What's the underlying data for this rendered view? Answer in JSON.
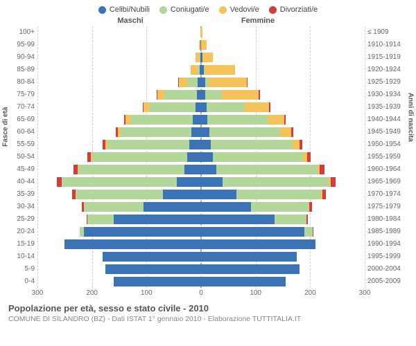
{
  "legend": [
    {
      "label": "Celibi/Nubili",
      "color": "#3b73b5"
    },
    {
      "label": "Coniugati/e",
      "color": "#b3d69b"
    },
    {
      "label": "Vedovi/e",
      "color": "#f6c35a"
    },
    {
      "label": "Divorziati/e",
      "color": "#d73c3c"
    }
  ],
  "headers": {
    "male": "Maschi",
    "female": "Femmine"
  },
  "y_left_title": "Fasce di età",
  "y_right_title": "Anni di nascita",
  "x_axis": {
    "min": -300,
    "max": 300,
    "ticks": [
      300,
      200,
      100,
      0,
      100,
      200,
      300
    ]
  },
  "title": "Popolazione per età, sesso e stato civile - 2010",
  "subtitle": "COMUNE DI SILANDRO (BZ) - Dati ISTAT 1° gennaio 2010 - Elaborazione TUTTITALIA.IT",
  "age_labels": [
    "100+",
    "95-99",
    "90-94",
    "85-89",
    "80-84",
    "75-79",
    "70-74",
    "65-69",
    "60-64",
    "55-59",
    "50-54",
    "45-49",
    "40-44",
    "35-39",
    "30-34",
    "25-29",
    "20-24",
    "15-19",
    "10-14",
    "5-9",
    "0-4"
  ],
  "birth_labels": [
    "≤ 1909",
    "1910-1914",
    "1915-1919",
    "1920-1924",
    "1925-1929",
    "1930-1934",
    "1935-1939",
    "1940-1944",
    "1945-1949",
    "1950-1954",
    "1955-1959",
    "1960-1964",
    "1965-1969",
    "1970-1974",
    "1975-1979",
    "1980-1984",
    "1985-1989",
    "1990-1994",
    "1995-1999",
    "2000-2004",
    "2005-2009"
  ],
  "rows": [
    {
      "m": [
        0,
        0,
        1,
        0
      ],
      "f": [
        0,
        0,
        3,
        0
      ]
    },
    {
      "m": [
        1,
        0,
        3,
        0
      ],
      "f": [
        0,
        0,
        10,
        0
      ]
    },
    {
      "m": [
        1,
        1,
        8,
        0
      ],
      "f": [
        2,
        0,
        20,
        0
      ]
    },
    {
      "m": [
        3,
        4,
        12,
        0
      ],
      "f": [
        5,
        2,
        55,
        0
      ]
    },
    {
      "m": [
        6,
        20,
        15,
        1
      ],
      "f": [
        8,
        6,
        70,
        1
      ]
    },
    {
      "m": [
        8,
        60,
        12,
        2
      ],
      "f": [
        8,
        30,
        68,
        2
      ]
    },
    {
      "m": [
        10,
        85,
        10,
        2
      ],
      "f": [
        10,
        70,
        45,
        2
      ]
    },
    {
      "m": [
        15,
        115,
        8,
        3
      ],
      "f": [
        12,
        110,
        30,
        3
      ]
    },
    {
      "m": [
        18,
        130,
        5,
        4
      ],
      "f": [
        15,
        130,
        20,
        4
      ]
    },
    {
      "m": [
        22,
        150,
        3,
        5
      ],
      "f": [
        18,
        150,
        12,
        5
      ]
    },
    {
      "m": [
        25,
        175,
        2,
        6
      ],
      "f": [
        22,
        165,
        8,
        6
      ]
    },
    {
      "m": [
        30,
        195,
        1,
        8
      ],
      "f": [
        28,
        185,
        5,
        8
      ]
    },
    {
      "m": [
        45,
        210,
        0,
        9
      ],
      "f": [
        40,
        195,
        3,
        9
      ]
    },
    {
      "m": [
        70,
        160,
        0,
        7
      ],
      "f": [
        65,
        155,
        2,
        7
      ]
    },
    {
      "m": [
        105,
        110,
        0,
        4
      ],
      "f": [
        92,
        105,
        1,
        5
      ]
    },
    {
      "m": [
        160,
        48,
        0,
        2
      ],
      "f": [
        135,
        58,
        0,
        3
      ]
    },
    {
      "m": [
        215,
        8,
        0,
        0
      ],
      "f": [
        190,
        15,
        0,
        1
      ]
    },
    {
      "m": [
        250,
        0,
        0,
        0
      ],
      "f": [
        210,
        0,
        0,
        0
      ]
    },
    {
      "m": [
        180,
        0,
        0,
        0
      ],
      "f": [
        175,
        0,
        0,
        0
      ]
    },
    {
      "m": [
        175,
        0,
        0,
        0
      ],
      "f": [
        180,
        0,
        0,
        0
      ]
    },
    {
      "m": [
        160,
        0,
        0,
        0
      ],
      "f": [
        155,
        0,
        0,
        0
      ]
    }
  ],
  "colors": {
    "grid": "#d0d0d0",
    "center": "#aaaaaa",
    "bg": "#ffffff"
  }
}
